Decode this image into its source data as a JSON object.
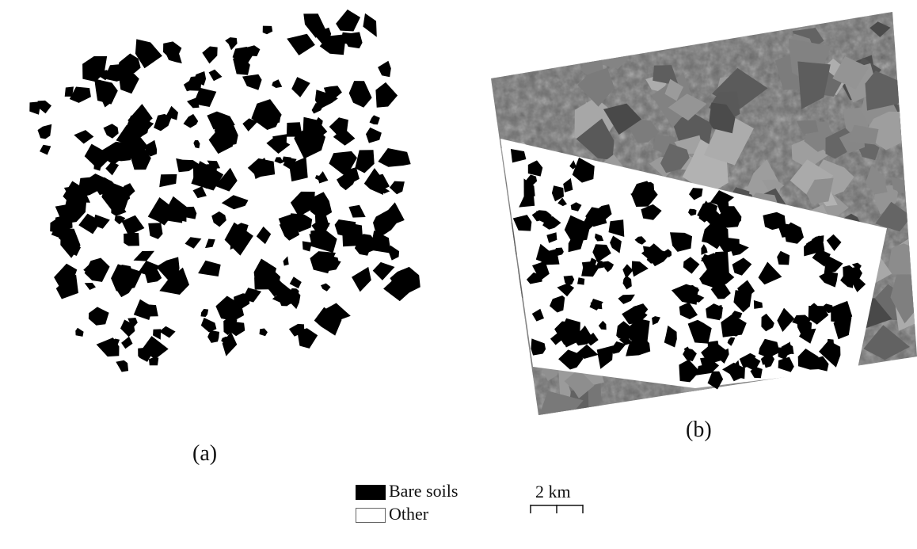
{
  "panels": {
    "a": {
      "caption": "(a)"
    },
    "b": {
      "caption": "(b)"
    }
  },
  "legend": {
    "items": [
      {
        "label": "Bare soils",
        "color": "#000000"
      },
      {
        "label": "Other",
        "color": "#ffffff"
      }
    ]
  },
  "scale": {
    "label": "2 km"
  },
  "colors": {
    "bare_soil": "#000000",
    "other": "#ffffff",
    "imagery_dark": "#4a4a4a",
    "imagery_light": "#9a9a9a"
  }
}
